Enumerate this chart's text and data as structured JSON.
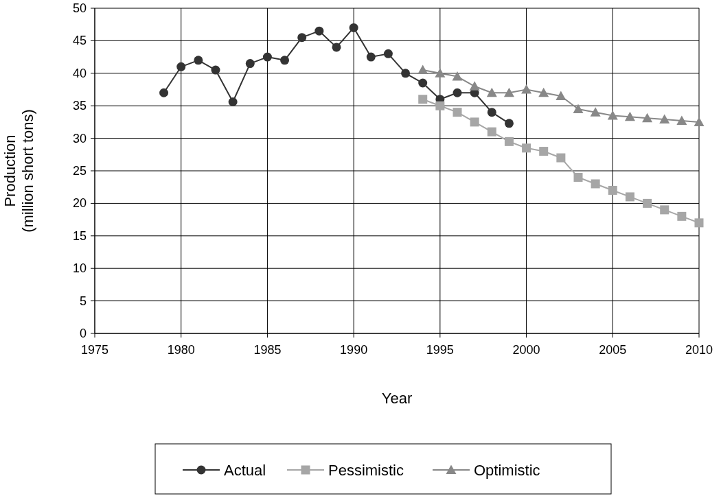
{
  "chart_data": {
    "type": "line",
    "xlabel": "Year",
    "ylabel": "Production\n(million short tons)",
    "xlim": [
      1975,
      2010
    ],
    "xticks": [
      1975,
      1980,
      1985,
      1990,
      1995,
      2000,
      2005,
      2010
    ],
    "ylim": [
      0,
      50
    ],
    "yticks": [
      0,
      5,
      10,
      15,
      20,
      25,
      30,
      35,
      40,
      45,
      50
    ],
    "grid": true,
    "legend": "bottom",
    "series": [
      {
        "name": "Actual",
        "color": "#333333",
        "marker": "circle",
        "x": [
          1979,
          1980,
          1981,
          1982,
          1983,
          1984,
          1985,
          1986,
          1987,
          1988,
          1989,
          1990,
          1991,
          1992,
          1993,
          1994,
          1995,
          1996,
          1997,
          1998,
          1999
        ],
        "values": [
          37,
          41,
          42,
          40.5,
          35.6,
          41.5,
          42.5,
          42,
          45.5,
          46.5,
          44,
          47,
          42.5,
          43,
          40,
          38.5,
          36,
          37,
          37,
          34,
          32.3
        ]
      },
      {
        "name": "Pessimistic",
        "color": "#a6a6a6",
        "marker": "square",
        "x": [
          1994,
          1995,
          1996,
          1997,
          1998,
          1999,
          2000,
          2001,
          2002,
          2003,
          2004,
          2005,
          2006,
          2007,
          2008,
          2009,
          2010
        ],
        "values": [
          36,
          35,
          34,
          32.5,
          31,
          29.5,
          28.5,
          28,
          27,
          24,
          23,
          22,
          21,
          20,
          19,
          18,
          17
        ]
      },
      {
        "name": "Optimistic",
        "color": "#888888",
        "marker": "triangle",
        "x": [
          1994,
          1995,
          1996,
          1997,
          1998,
          1999,
          2000,
          2001,
          2002,
          2003,
          2004,
          2005,
          2006,
          2007,
          2008,
          2009,
          2010
        ],
        "values": [
          40.5,
          40,
          39.5,
          38,
          37,
          37,
          37.5,
          37,
          36.5,
          34.5,
          34,
          33.5,
          33.3,
          33.1,
          32.9,
          32.7,
          32.5
        ]
      }
    ]
  }
}
